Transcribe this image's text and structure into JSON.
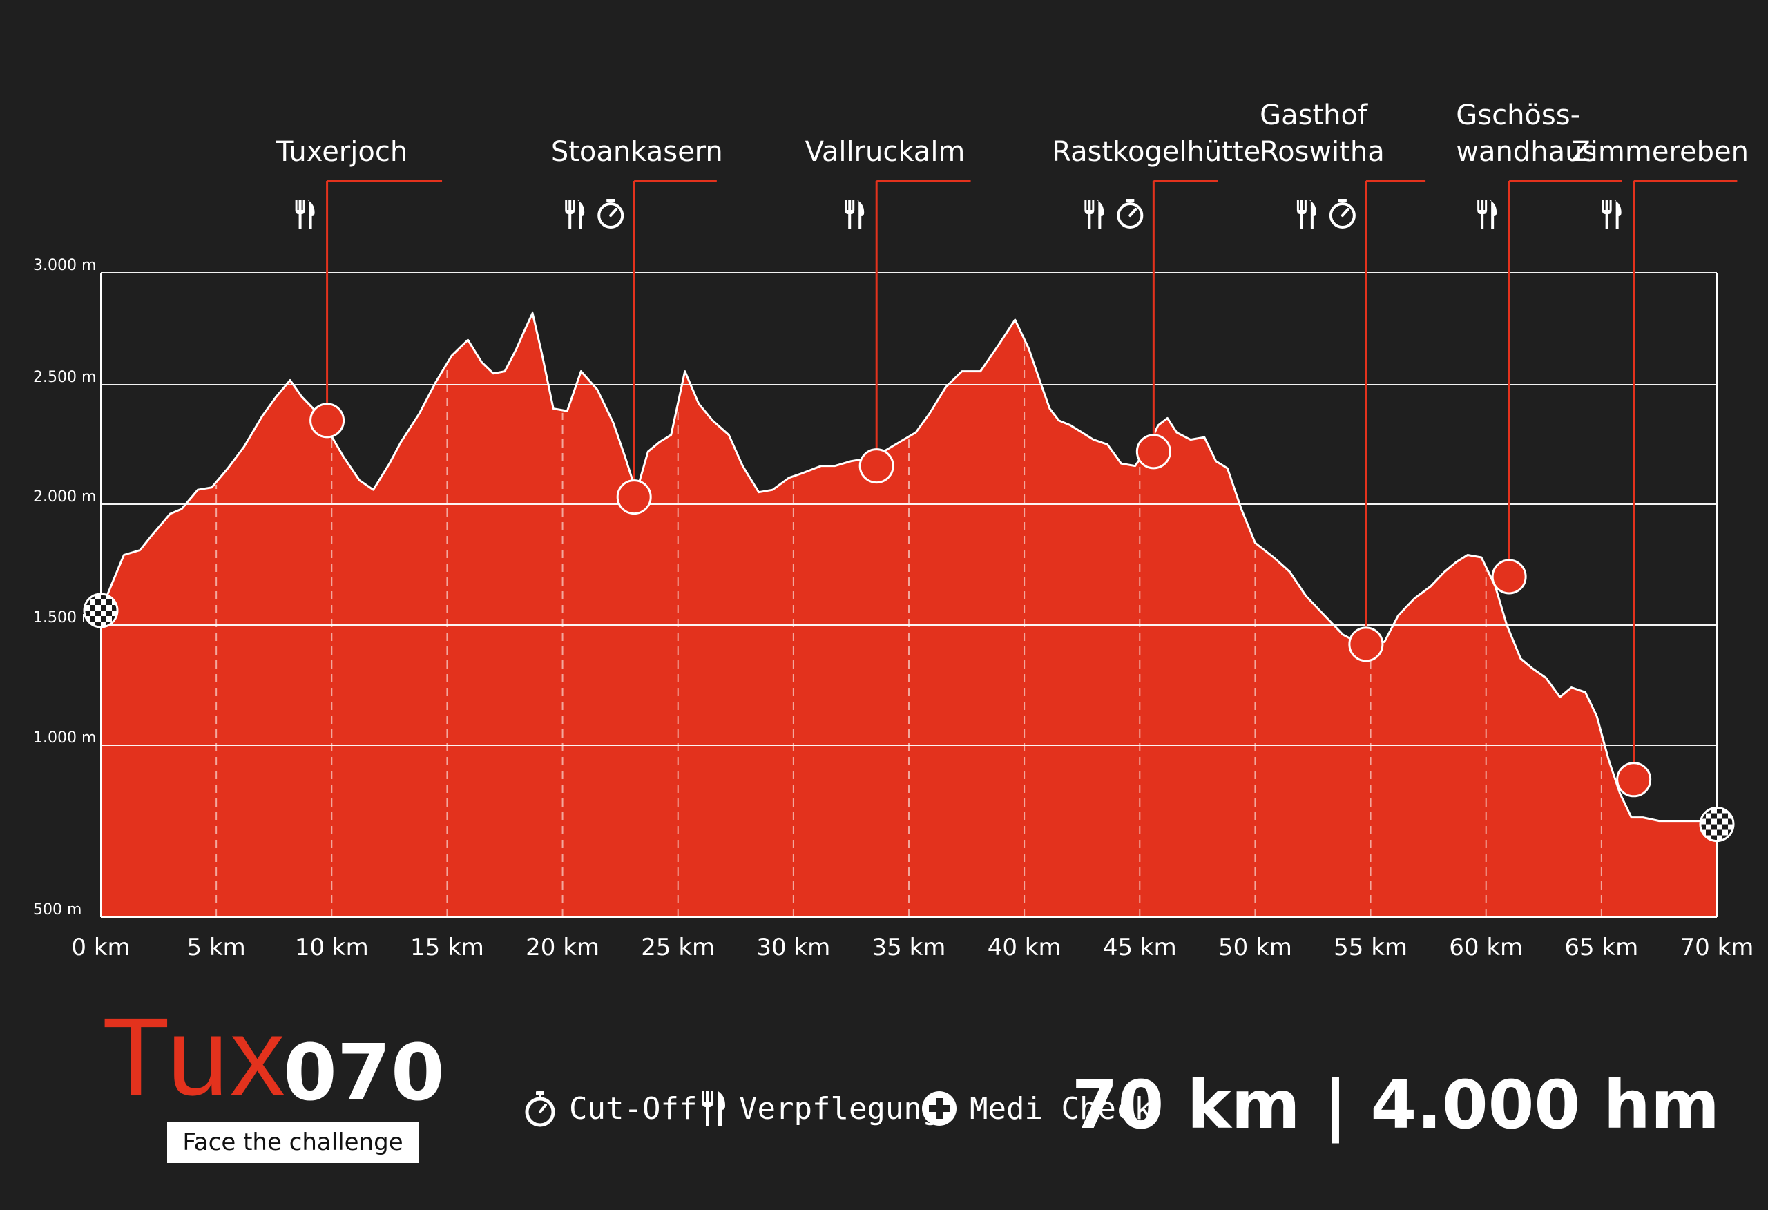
{
  "chart_data": {
    "type": "area",
    "xlabel": "",
    "ylabel": "",
    "x_unit": "km",
    "xlim": [
      0,
      70
    ],
    "ylim": [
      500,
      3000
    ],
    "x_ticks": [
      0,
      5,
      10,
      15,
      20,
      25,
      30,
      35,
      40,
      45,
      50,
      55,
      60,
      65,
      70
    ],
    "x_tick_labels": [
      "0 km",
      "5 km",
      "10 km",
      "15 km",
      "20 km",
      "25 km",
      "30 km",
      "35 km",
      "40 km",
      "45 km",
      "50 km",
      "55 km",
      "60 km",
      "65 km",
      "70 km"
    ],
    "y_ticks": [
      3000,
      2500,
      2000,
      1500,
      1000,
      500
    ],
    "y_tick_labels": [
      "3.000 m",
      "2.500 m",
      "2.000 m",
      "1.500 m",
      "1.000 m",
      "500 m"
    ],
    "grid": true,
    "fill_color": "#e3321d",
    "line_color": "#ffffff",
    "series": [
      {
        "x": [
          0,
          1,
          1.7,
          2.2,
          3,
          3.5,
          4.2,
          4.8,
          5.5,
          6.2,
          7,
          7.6,
          8.2,
          8.7,
          9.3,
          9.9,
          10.5,
          11.2,
          11.8,
          12.5,
          13,
          13.8,
          14.5,
          15.2,
          15.9,
          16.5,
          17,
          17.5,
          18,
          18.3,
          18.7,
          19.1,
          19.6,
          20.2,
          20.8,
          21.5,
          22.2,
          22.7,
          23.2,
          23.7,
          24.2,
          24.7,
          25.3,
          25.9,
          26.5,
          27.2,
          27.8,
          28.5,
          29.1,
          29.8,
          30.4,
          31.2,
          31.8,
          32.5,
          33.1,
          33.9,
          34.6,
          35.3,
          35.9,
          36.6,
          37.3,
          38.1,
          38.9,
          39.6,
          40.2,
          40.7,
          41.1,
          41.5,
          42,
          42.5,
          43,
          43.6,
          44.2,
          44.8,
          45.3,
          45.8,
          46.2,
          46.6,
          47.2,
          47.8,
          48.3,
          48.8,
          49.4,
          50,
          50.8,
          51.5,
          52.2,
          53,
          53.8,
          54.4,
          55,
          55.6,
          56.2,
          56.9,
          57.6,
          58.2,
          58.7,
          59.2,
          59.8,
          60.4,
          60.9,
          61.5,
          62,
          62.6,
          63.2,
          63.7,
          64.3,
          64.8,
          65.3,
          65.8,
          66.3,
          66.8,
          67.5,
          68.2,
          69,
          69.5,
          70
        ],
        "y": [
          1560,
          1790,
          1810,
          1870,
          1960,
          1980,
          2060,
          2070,
          2150,
          2240,
          2370,
          2450,
          2520,
          2450,
          2390,
          2300,
          2200,
          2100,
          2060,
          2170,
          2260,
          2380,
          2510,
          2630,
          2700,
          2600,
          2550,
          2560,
          2660,
          2730,
          2820,
          2640,
          2400,
          2390,
          2560,
          2480,
          2340,
          2200,
          2050,
          2220,
          2260,
          2290,
          2560,
          2420,
          2350,
          2290,
          2160,
          2050,
          2060,
          2110,
          2130,
          2160,
          2160,
          2180,
          2190,
          2220,
          2260,
          2300,
          2380,
          2490,
          2560,
          2560,
          2680,
          2790,
          2660,
          2510,
          2400,
          2350,
          2330,
          2300,
          2270,
          2250,
          2170,
          2160,
          2230,
          2330,
          2360,
          2300,
          2270,
          2280,
          2180,
          2150,
          1980,
          1840,
          1780,
          1720,
          1620,
          1540,
          1460,
          1430,
          1430,
          1430,
          1540,
          1610,
          1660,
          1720,
          1760,
          1790,
          1780,
          1660,
          1500,
          1360,
          1320,
          1280,
          1200,
          1240,
          1220,
          1120,
          960,
          860,
          790,
          790,
          780,
          780,
          780,
          780,
          770
        ]
      }
    ],
    "start_finish": [
      {
        "km": 0,
        "alt": 1560
      },
      {
        "km": 70,
        "alt": 770
      }
    ],
    "aid_stations": [
      {
        "name": "Tuxerjoch",
        "km": 9.8,
        "alt": 2350,
        "label_km": 7.6,
        "label_lines": 1,
        "icons": [
          "food"
        ]
      },
      {
        "name": "Stoankasern",
        "km": 23.1,
        "alt": 2030,
        "label_km": 19.5,
        "label_lines": 1,
        "icons": [
          "food",
          "cutoff"
        ]
      },
      {
        "name": "Vallruckalm",
        "km": 33.6,
        "alt": 2160,
        "label_km": 30.5,
        "label_lines": 1,
        "icons": [
          "food"
        ]
      },
      {
        "name": "Rastkogelhütte",
        "km": 45.6,
        "alt": 2220,
        "label_km": 41.2,
        "label_lines": 1,
        "icons": [
          "food",
          "cutoff"
        ]
      },
      {
        "name": "Gasthof\nRoswitha",
        "km": 54.8,
        "alt": 1420,
        "label_km": 50.2,
        "label_lines": 2,
        "icons": [
          "food",
          "cutoff"
        ]
      },
      {
        "name": "Gschöss-\nwandhaus",
        "km": 61.0,
        "alt": 1700,
        "label_km": 58.7,
        "label_lines": 2,
        "icons": [
          "food"
        ]
      },
      {
        "name": "Zimmereben",
        "km": 66.4,
        "alt": 900,
        "label_km": 63.7,
        "label_lines": 1,
        "icons": [
          "food"
        ]
      }
    ]
  },
  "brand": {
    "tux": "Tux",
    "number": "070",
    "tagline": "Face the challenge"
  },
  "legend": {
    "cutoff_label": "Cut-Off",
    "food_label": "Verpflegung",
    "medi_label": "Medi Check"
  },
  "stats": "70 km | 4.000 hm",
  "colors": {
    "background": "#1f1f1f",
    "accent": "#e3321d",
    "text": "#ffffff"
  }
}
